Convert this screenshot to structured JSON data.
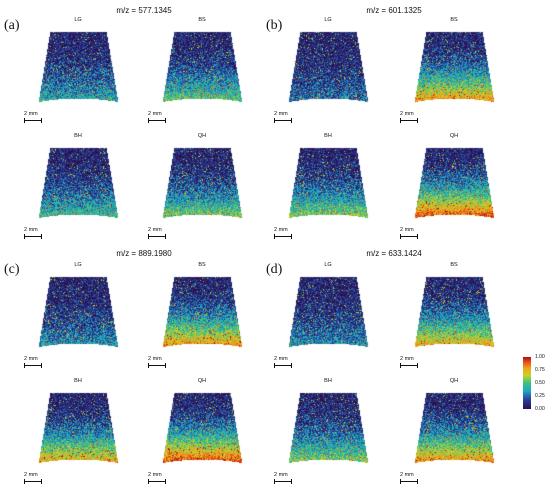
{
  "panels": [
    {
      "letter": "(a)",
      "mz": "m/z = 577.1345",
      "intensity": [
        0.25,
        0.35,
        0.3,
        0.38
      ]
    },
    {
      "letter": "(b)",
      "mz": "m/z = 601.1325",
      "intensity": [
        0.15,
        0.6,
        0.4,
        0.7
      ]
    },
    {
      "letter": "(c)",
      "mz": "m/z = 889.1980",
      "intensity": [
        0.2,
        0.6,
        0.55,
        0.7
      ]
    },
    {
      "letter": "(d)",
      "mz": "m/z = 633.1424",
      "intensity": [
        0.2,
        0.55,
        0.4,
        0.6
      ]
    }
  ],
  "sub_labels": [
    "LG",
    "BS",
    "BH",
    "QH"
  ],
  "scale_bar": "2 mm",
  "colorbar": {
    "ticks": [
      "1.00",
      "0.75",
      "0.50",
      "0.25",
      "0.00"
    ],
    "colormap": [
      "#2a1050",
      "#2b3f9a",
      "#1aa8c8",
      "#3cc080",
      "#c8d22a",
      "#f2a51c",
      "#e5501a",
      "#b00d0d"
    ]
  }
}
